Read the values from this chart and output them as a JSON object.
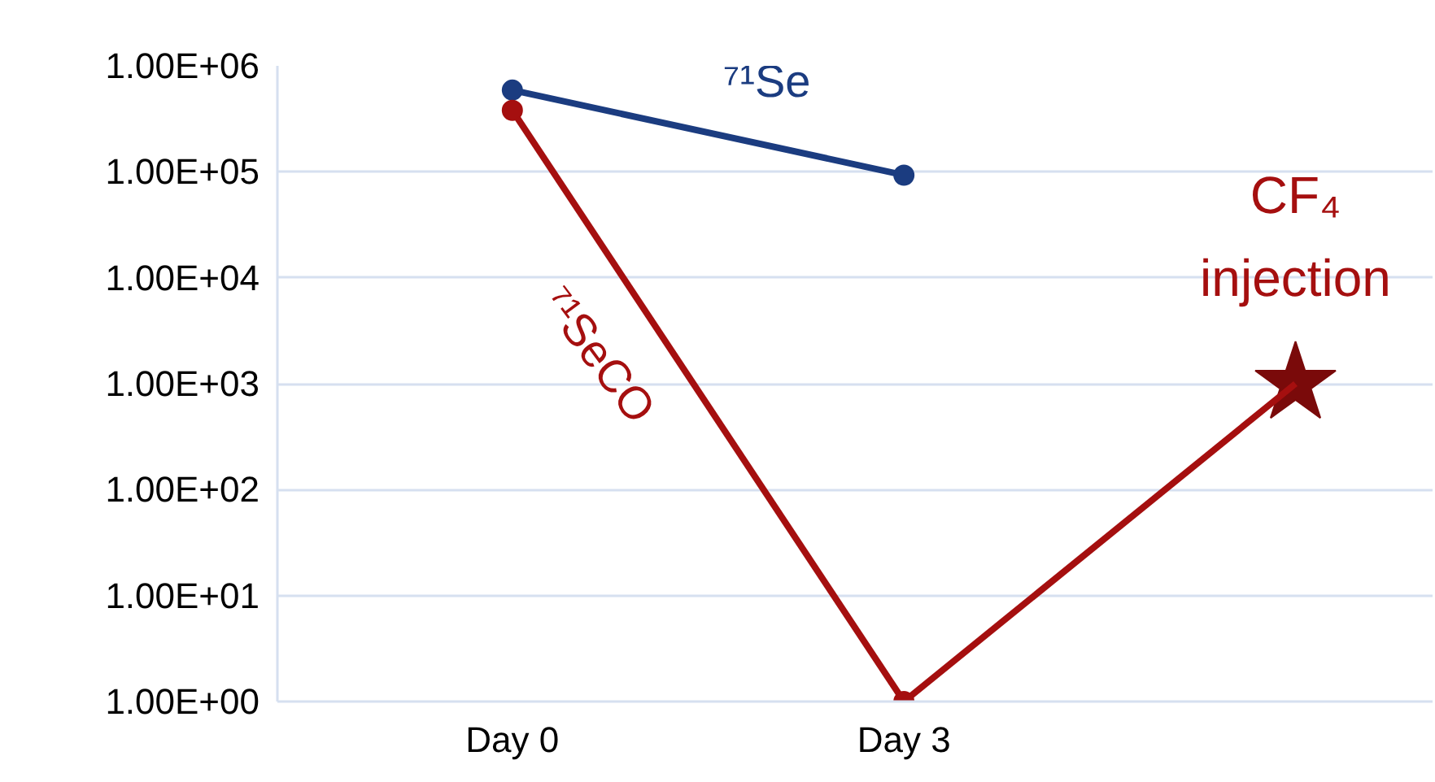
{
  "chart_data": {
    "type": "line",
    "log": "y",
    "grid": "y",
    "line_style": "solid",
    "categories": [
      "Day 0",
      "Day 3",
      null
    ],
    "ylim": [
      1,
      1000000
    ],
    "yticks": [
      {
        "value": 1,
        "label": "1.00E+00"
      },
      {
        "value": 10,
        "label": "1.00E+01"
      },
      {
        "value": 100,
        "label": "1.00E+02"
      },
      {
        "value": 1000,
        "label": "1.00E+03"
      },
      {
        "value": 10000,
        "label": "1.00E+04"
      },
      {
        "value": 100000,
        "label": "1.00E+05"
      },
      {
        "value": 1000000,
        "label": "1.00E+06"
      }
    ],
    "series": [
      {
        "type": "scatter",
        "color": "#7a0a0a",
        "marker": "star",
        "values": [
          null,
          null,
          1000
        ]
      },
      {
        "name": "⁷¹Se",
        "color": "#1b3c80",
        "marker": "circle",
        "values": [
          590000,
          93000,
          null
        ]
      },
      {
        "name": "⁷¹SeCO",
        "color": "#a50f0f",
        "marker": "circle",
        "values": [
          380000,
          1,
          null
        ]
      },
      {
        "color": "#a50f0f",
        "marker": "none",
        "values": [
          null,
          1,
          1000
        ]
      }
    ],
    "annotations": [
      "CF₄\ninjection"
    ]
  }
}
